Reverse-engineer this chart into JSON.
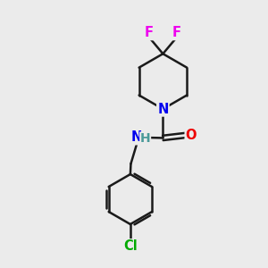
{
  "background_color": "#ebebeb",
  "atom_colors": {
    "C": "#000000",
    "N": "#0000ee",
    "O": "#ee0000",
    "F": "#ee00ee",
    "Cl": "#00aa00",
    "H": "#4a9a9a"
  },
  "bond_color": "#1a1a1a",
  "bond_width": 1.8,
  "font_size_atoms": 10.5
}
